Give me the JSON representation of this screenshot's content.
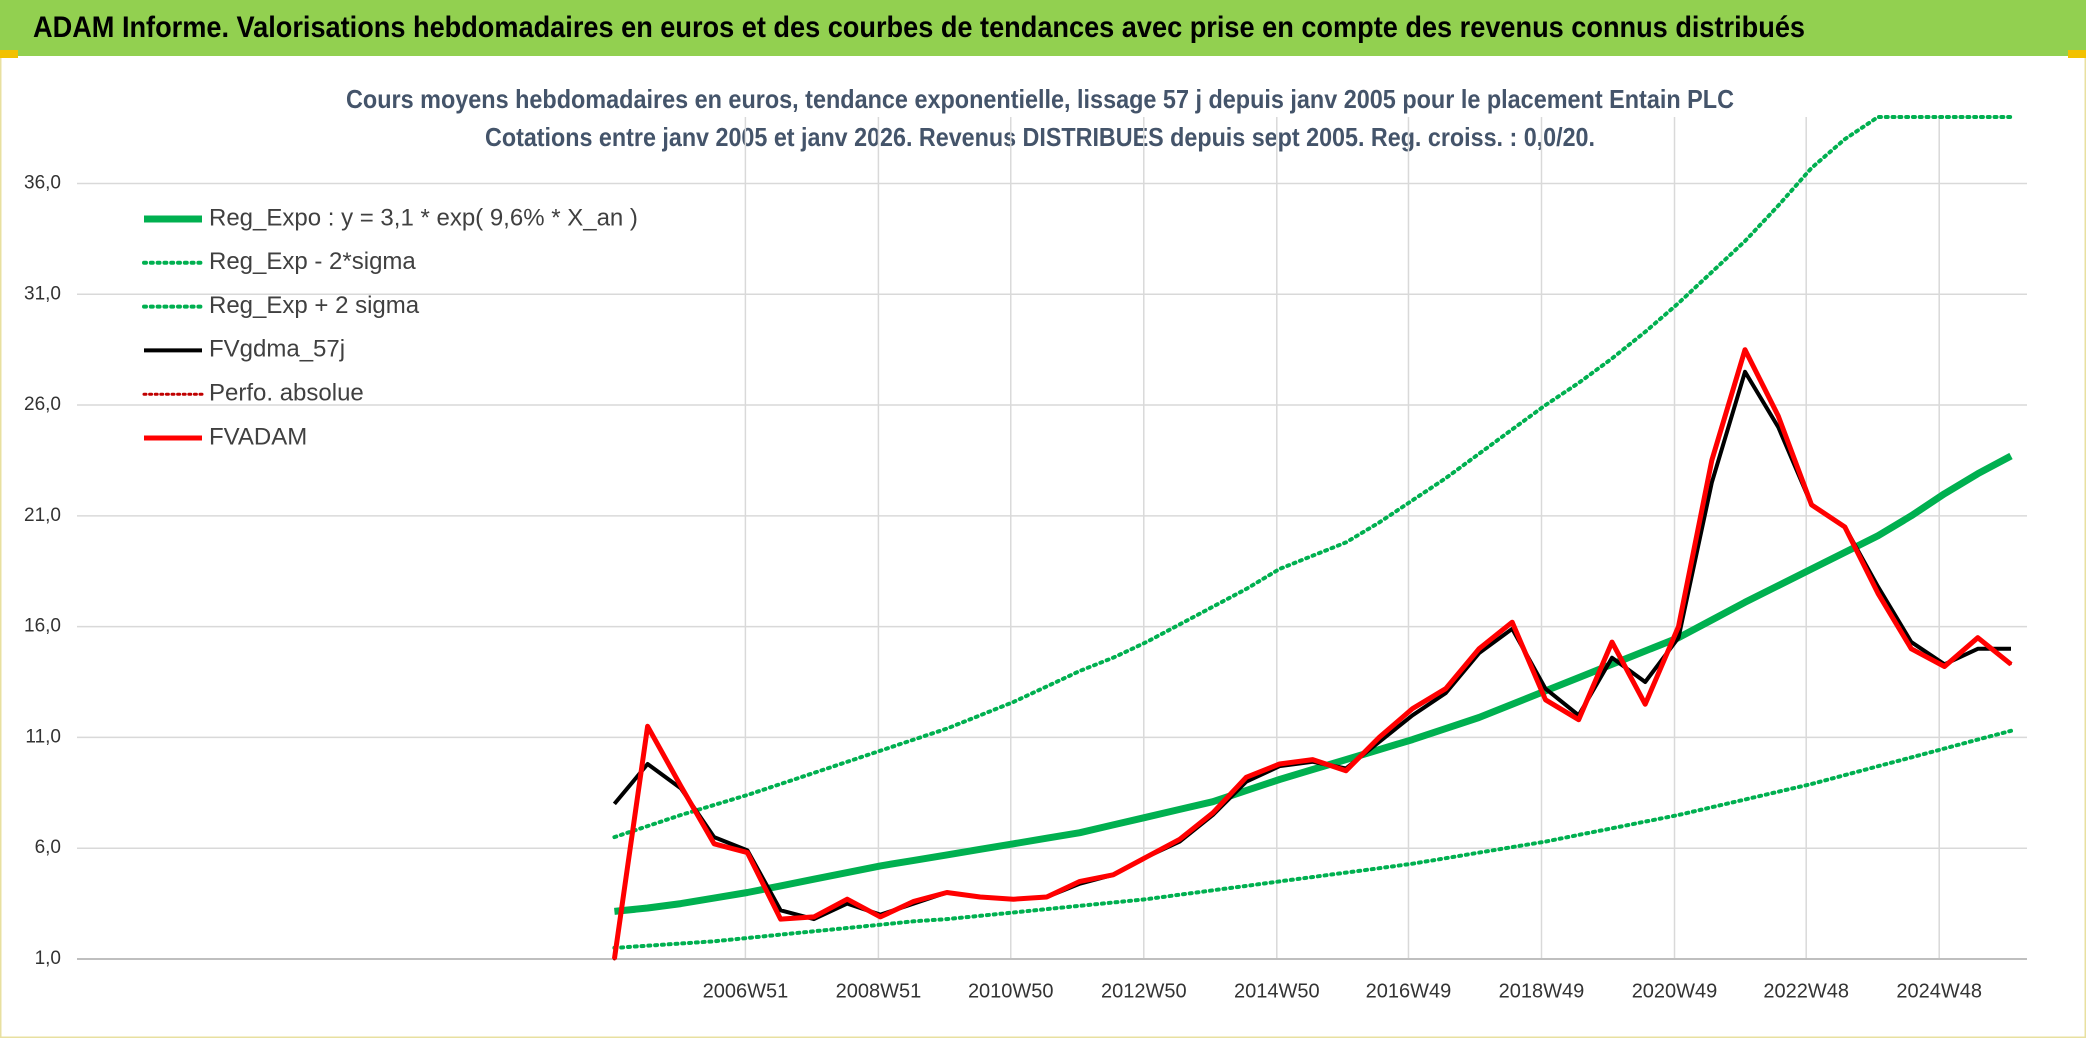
{
  "header": {
    "title": "ADAM Informe. Valorisations hebdomadaires en euros et des courbes de tendances avec prise en compte des revenus connus distribués"
  },
  "chart_data": {
    "type": "line",
    "title": "Cours moyens hebdomadaires en euros, tendance exponentielle, lissage 57 j depuis janv 2005 pour le placement Entain PLC",
    "subtitle": "Cotations entre janv 2005 et janv 2026. Revenus DISTRIBUES depuis sept 2005. Reg. croiss. : 0,0/20.",
    "x": [
      2005.0,
      2005.5,
      2006.0,
      2006.5,
      2007.0,
      2007.5,
      2008.0,
      2008.5,
      2009.0,
      2009.5,
      2010.0,
      2010.5,
      2011.0,
      2011.5,
      2012.0,
      2012.5,
      2013.0,
      2013.5,
      2014.0,
      2014.5,
      2015.0,
      2015.5,
      2016.0,
      2016.5,
      2017.0,
      2017.5,
      2018.0,
      2018.5,
      2019.0,
      2019.5,
      2020.0,
      2020.5,
      2021.0,
      2021.5,
      2022.0,
      2022.5,
      2023.0,
      2023.5,
      2024.0,
      2024.5,
      2025.0,
      2025.5,
      2026.0
    ],
    "xlim": [
      1996.92,
      2026.24
    ],
    "xticks": [
      {
        "value": 2006.97,
        "label": "2006W51"
      },
      {
        "value": 2008.97,
        "label": "2008W51"
      },
      {
        "value": 2010.96,
        "label": "2010W50"
      },
      {
        "value": 2012.96,
        "label": "2012W50"
      },
      {
        "value": 2014.96,
        "label": "2014W50"
      },
      {
        "value": 2016.94,
        "label": "2016W49"
      },
      {
        "value": 2018.94,
        "label": "2018W49"
      },
      {
        "value": 2020.94,
        "label": "2020W49"
      },
      {
        "value": 2022.92,
        "label": "2022W48"
      },
      {
        "value": 2024.92,
        "label": "2024W48"
      }
    ],
    "ylim": [
      1,
      39
    ],
    "yticks": [
      {
        "value": 1,
        "label": "1,0"
      },
      {
        "value": 6,
        "label": "6,0"
      },
      {
        "value": 11,
        "label": "11,0"
      },
      {
        "value": 16,
        "label": "16,0"
      },
      {
        "value": 21,
        "label": "21,0"
      },
      {
        "value": 26,
        "label": "26,0"
      },
      {
        "value": 31,
        "label": "31,0"
      },
      {
        "value": 36,
        "label": "36,0"
      }
    ],
    "grid": true,
    "legend": "top-left",
    "series": [
      {
        "name": "Reg_Expo : y = 3,1 * exp( 9,6% *  X_an )",
        "color": "#00b050",
        "style": "solid",
        "width": 7,
        "values": [
          3.15,
          3.3,
          3.5,
          3.75,
          4.0,
          4.3,
          4.6,
          4.9,
          5.2,
          5.45,
          5.7,
          5.95,
          6.2,
          6.45,
          6.7,
          7.05,
          7.4,
          7.75,
          8.1,
          8.6,
          9.1,
          9.55,
          10.0,
          10.45,
          10.9,
          11.4,
          11.9,
          12.5,
          13.1,
          13.7,
          14.3,
          14.9,
          15.5,
          16.3,
          17.1,
          17.85,
          18.6,
          19.35,
          20.1,
          21.0,
          22.0,
          22.9,
          23.7
        ]
      },
      {
        "name": "Reg_Exp - 2*sigma",
        "color": "#00b050",
        "style": "dotted",
        "width": 4,
        "values": [
          1.5,
          1.6,
          1.7,
          1.8,
          1.95,
          2.1,
          2.25,
          2.4,
          2.55,
          2.7,
          2.8,
          2.95,
          3.1,
          3.25,
          3.4,
          3.55,
          3.7,
          3.9,
          4.1,
          4.3,
          4.5,
          4.7,
          4.9,
          5.1,
          5.3,
          5.55,
          5.8,
          6.05,
          6.3,
          6.6,
          6.9,
          7.2,
          7.5,
          7.85,
          8.2,
          8.55,
          8.9,
          9.3,
          9.7,
          10.1,
          10.5,
          10.9,
          11.3
        ]
      },
      {
        "name": "Reg_Exp + 2 sigma",
        "color": "#00b050",
        "style": "dotted",
        "width": 4,
        "values": [
          6.5,
          7.0,
          7.5,
          7.95,
          8.4,
          8.9,
          9.4,
          9.9,
          10.4,
          10.9,
          11.4,
          12.0,
          12.6,
          13.3,
          14.0,
          14.6,
          15.3,
          16.1,
          16.9,
          17.7,
          18.6,
          19.2,
          19.8,
          20.7,
          21.7,
          22.7,
          23.8,
          24.9,
          26.0,
          27.0,
          28.1,
          29.3,
          30.6,
          32.0,
          33.4,
          35.0,
          36.7,
          38.0,
          39,
          39,
          39,
          39,
          39
        ]
      },
      {
        "name": "FVgdma_57j",
        "color": "#000000",
        "style": "solid",
        "width": 4,
        "values": [
          8.0,
          9.8,
          8.7,
          6.5,
          5.9,
          3.2,
          2.8,
          3.5,
          3.0,
          3.5,
          4.0,
          3.8,
          3.7,
          3.8,
          4.4,
          4.8,
          5.6,
          6.3,
          7.5,
          9.0,
          9.7,
          9.9,
          9.6,
          10.8,
          12.0,
          13.0,
          14.8,
          15.9,
          13.2,
          12.0,
          14.6,
          13.5,
          15.5,
          22.5,
          27.5,
          25.0,
          21.5,
          20.5,
          17.8,
          15.3,
          14.3,
          15.0,
          15.0
        ]
      },
      {
        "name": "Perfo. absolue",
        "color": "#c00000",
        "style": "dotted",
        "width": 3,
        "values": [
          1.0,
          11.5,
          8.8,
          6.2,
          5.8,
          2.8,
          2.9,
          3.7,
          2.9,
          3.6,
          4.0,
          3.8,
          3.7,
          3.8,
          4.5,
          4.8,
          5.6,
          6.4,
          7.6,
          9.2,
          9.8,
          10.0,
          9.5,
          11.0,
          12.3,
          13.2,
          15.0,
          16.2,
          12.7,
          11.8,
          15.3,
          12.5,
          16.0,
          23.5,
          28.5,
          25.5,
          21.5,
          20.5,
          17.5,
          15.0,
          14.2,
          15.5,
          14.3
        ]
      },
      {
        "name": "FVADAM",
        "color": "#ff0000",
        "style": "solid",
        "width": 5,
        "values": [
          1.0,
          11.5,
          8.8,
          6.2,
          5.8,
          2.8,
          2.9,
          3.7,
          2.9,
          3.6,
          4.0,
          3.8,
          3.7,
          3.8,
          4.5,
          4.8,
          5.6,
          6.4,
          7.6,
          9.2,
          9.8,
          10.0,
          9.5,
          11.0,
          12.3,
          13.2,
          15.0,
          16.2,
          12.7,
          11.8,
          15.3,
          12.5,
          16.0,
          23.5,
          28.5,
          25.5,
          21.5,
          20.5,
          17.5,
          15.0,
          14.2,
          15.5,
          14.3
        ]
      }
    ]
  }
}
